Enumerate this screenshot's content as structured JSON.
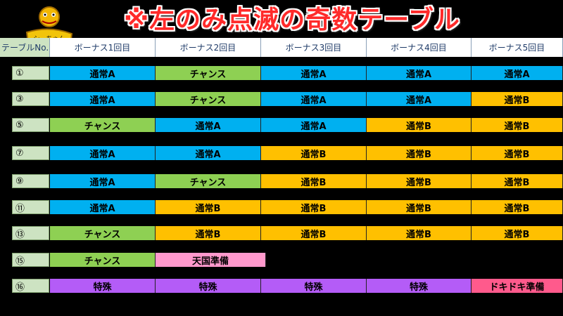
{
  "title": "※左のみ点滅の奇数テーブル",
  "mascot_label": "シーちゃん",
  "header": {
    "table_no": "テーブルNo.",
    "bonus1": "ボーナス1回目",
    "bonus2": "ボーナス2回目",
    "bonus3": "ボーナス3回目",
    "bonus4": "ボーナス4回目",
    "bonus5": "ボーナス5回目"
  },
  "colors": {
    "normal_a": "#00b0f0",
    "normal_b": "#ffc000",
    "chance": "#8ed053",
    "heaven_prep": "#ff99cc",
    "special": "#b45cf7",
    "dokidoki_prep": "#ff5a8c",
    "title_red": "#ff2a2a"
  },
  "rows": [
    {
      "no": "①",
      "cells": [
        "通常A",
        "チャンス",
        "通常A",
        "通常A",
        "通常A"
      ]
    },
    {
      "no": "③",
      "cells": [
        "通常A",
        "チャンス",
        "通常A",
        "通常A",
        "通常B"
      ]
    },
    {
      "no": "⑤",
      "cells": [
        "チャンス",
        "通常A",
        "通常A",
        "通常B",
        "通常B"
      ]
    },
    {
      "no": "⑦",
      "cells": [
        "通常A",
        "通常A",
        "通常B",
        "通常B",
        "通常B"
      ]
    },
    {
      "no": "⑨",
      "cells": [
        "通常A",
        "チャンス",
        "通常B",
        "通常B",
        "通常B"
      ]
    },
    {
      "no": "⑪",
      "cells": [
        "通常A",
        "通常B",
        "通常B",
        "通常B",
        "通常B"
      ]
    },
    {
      "no": "⑬",
      "cells": [
        "チャンス",
        "通常B",
        "通常B",
        "通常B",
        "通常B"
      ]
    },
    {
      "no": "⑮",
      "cells": [
        "チャンス",
        "天国準備"
      ]
    },
    {
      "no": "⑯",
      "cells": [
        "特殊",
        "特殊",
        "特殊",
        "特殊",
        "ドキドキ準備"
      ]
    }
  ]
}
